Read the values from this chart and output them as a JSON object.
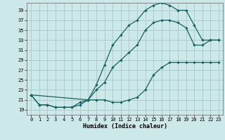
{
  "xlabel": "Humidex (Indice chaleur)",
  "bg_color": "#cce8e8",
  "grid_color": "#aacccc",
  "line_color": "#1a6060",
  "xlim": [
    -0.5,
    23.5
  ],
  "ylim": [
    18.0,
    40.5
  ],
  "xticks": [
    0,
    1,
    2,
    3,
    4,
    5,
    6,
    7,
    8,
    9,
    10,
    11,
    12,
    13,
    14,
    15,
    16,
    17,
    18,
    19,
    20,
    21,
    22,
    23
  ],
  "yticks": [
    19,
    21,
    23,
    25,
    27,
    29,
    31,
    33,
    35,
    37,
    39
  ],
  "line1_x": [
    0,
    1,
    2,
    3,
    4,
    5,
    6,
    7,
    8,
    9,
    10,
    11,
    12,
    13,
    14,
    15,
    16,
    17,
    18,
    19,
    20,
    21,
    22,
    23
  ],
  "line1_y": [
    22,
    20,
    20,
    19.5,
    19.5,
    19.5,
    20,
    21,
    21,
    21,
    20.5,
    20.5,
    21,
    21.5,
    23,
    26,
    27.5,
    28.5,
    28.5,
    28.5,
    28.5,
    28.5,
    28.5,
    28.5
  ],
  "line2_x": [
    0,
    1,
    2,
    3,
    4,
    5,
    6,
    7,
    8,
    9,
    10,
    11,
    12,
    13,
    14,
    15,
    16,
    17,
    18,
    19,
    20,
    21,
    22,
    23
  ],
  "line2_y": [
    22,
    20,
    20,
    19.5,
    19.5,
    19.5,
    20.5,
    21,
    23,
    24.5,
    27.5,
    29,
    30.5,
    32,
    35,
    36.5,
    37,
    37,
    36.5,
    35.5,
    32,
    32,
    33,
    33
  ],
  "line3_x": [
    0,
    7,
    8,
    9,
    10,
    11,
    12,
    13,
    14,
    15,
    16,
    17,
    18,
    19,
    20,
    21,
    22,
    23
  ],
  "line3_y": [
    22,
    21,
    24,
    28,
    32,
    34,
    36,
    37,
    39,
    40,
    40.5,
    40,
    39,
    39,
    36,
    33,
    33,
    33
  ]
}
